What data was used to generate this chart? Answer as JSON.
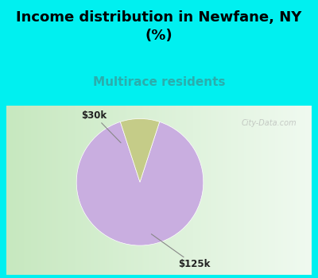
{
  "title": "Income distribution in Newfane, NY\n(%)",
  "subtitle": "Multirace residents",
  "slices": [
    {
      "label": "$125k",
      "value": 90,
      "color": "#c9aee0"
    },
    {
      "label": "$30k",
      "value": 10,
      "color": "#c5cc88"
    }
  ],
  "title_fontsize": 13,
  "subtitle_fontsize": 11,
  "subtitle_color": "#2aadad",
  "background_color": "#00f0f0",
  "chart_bg_left": "#c8e8c0",
  "chart_bg_right": "#f0f8f0",
  "label_fontsize": 8.5,
  "watermark": "City-Data.com",
  "startangle": 72
}
